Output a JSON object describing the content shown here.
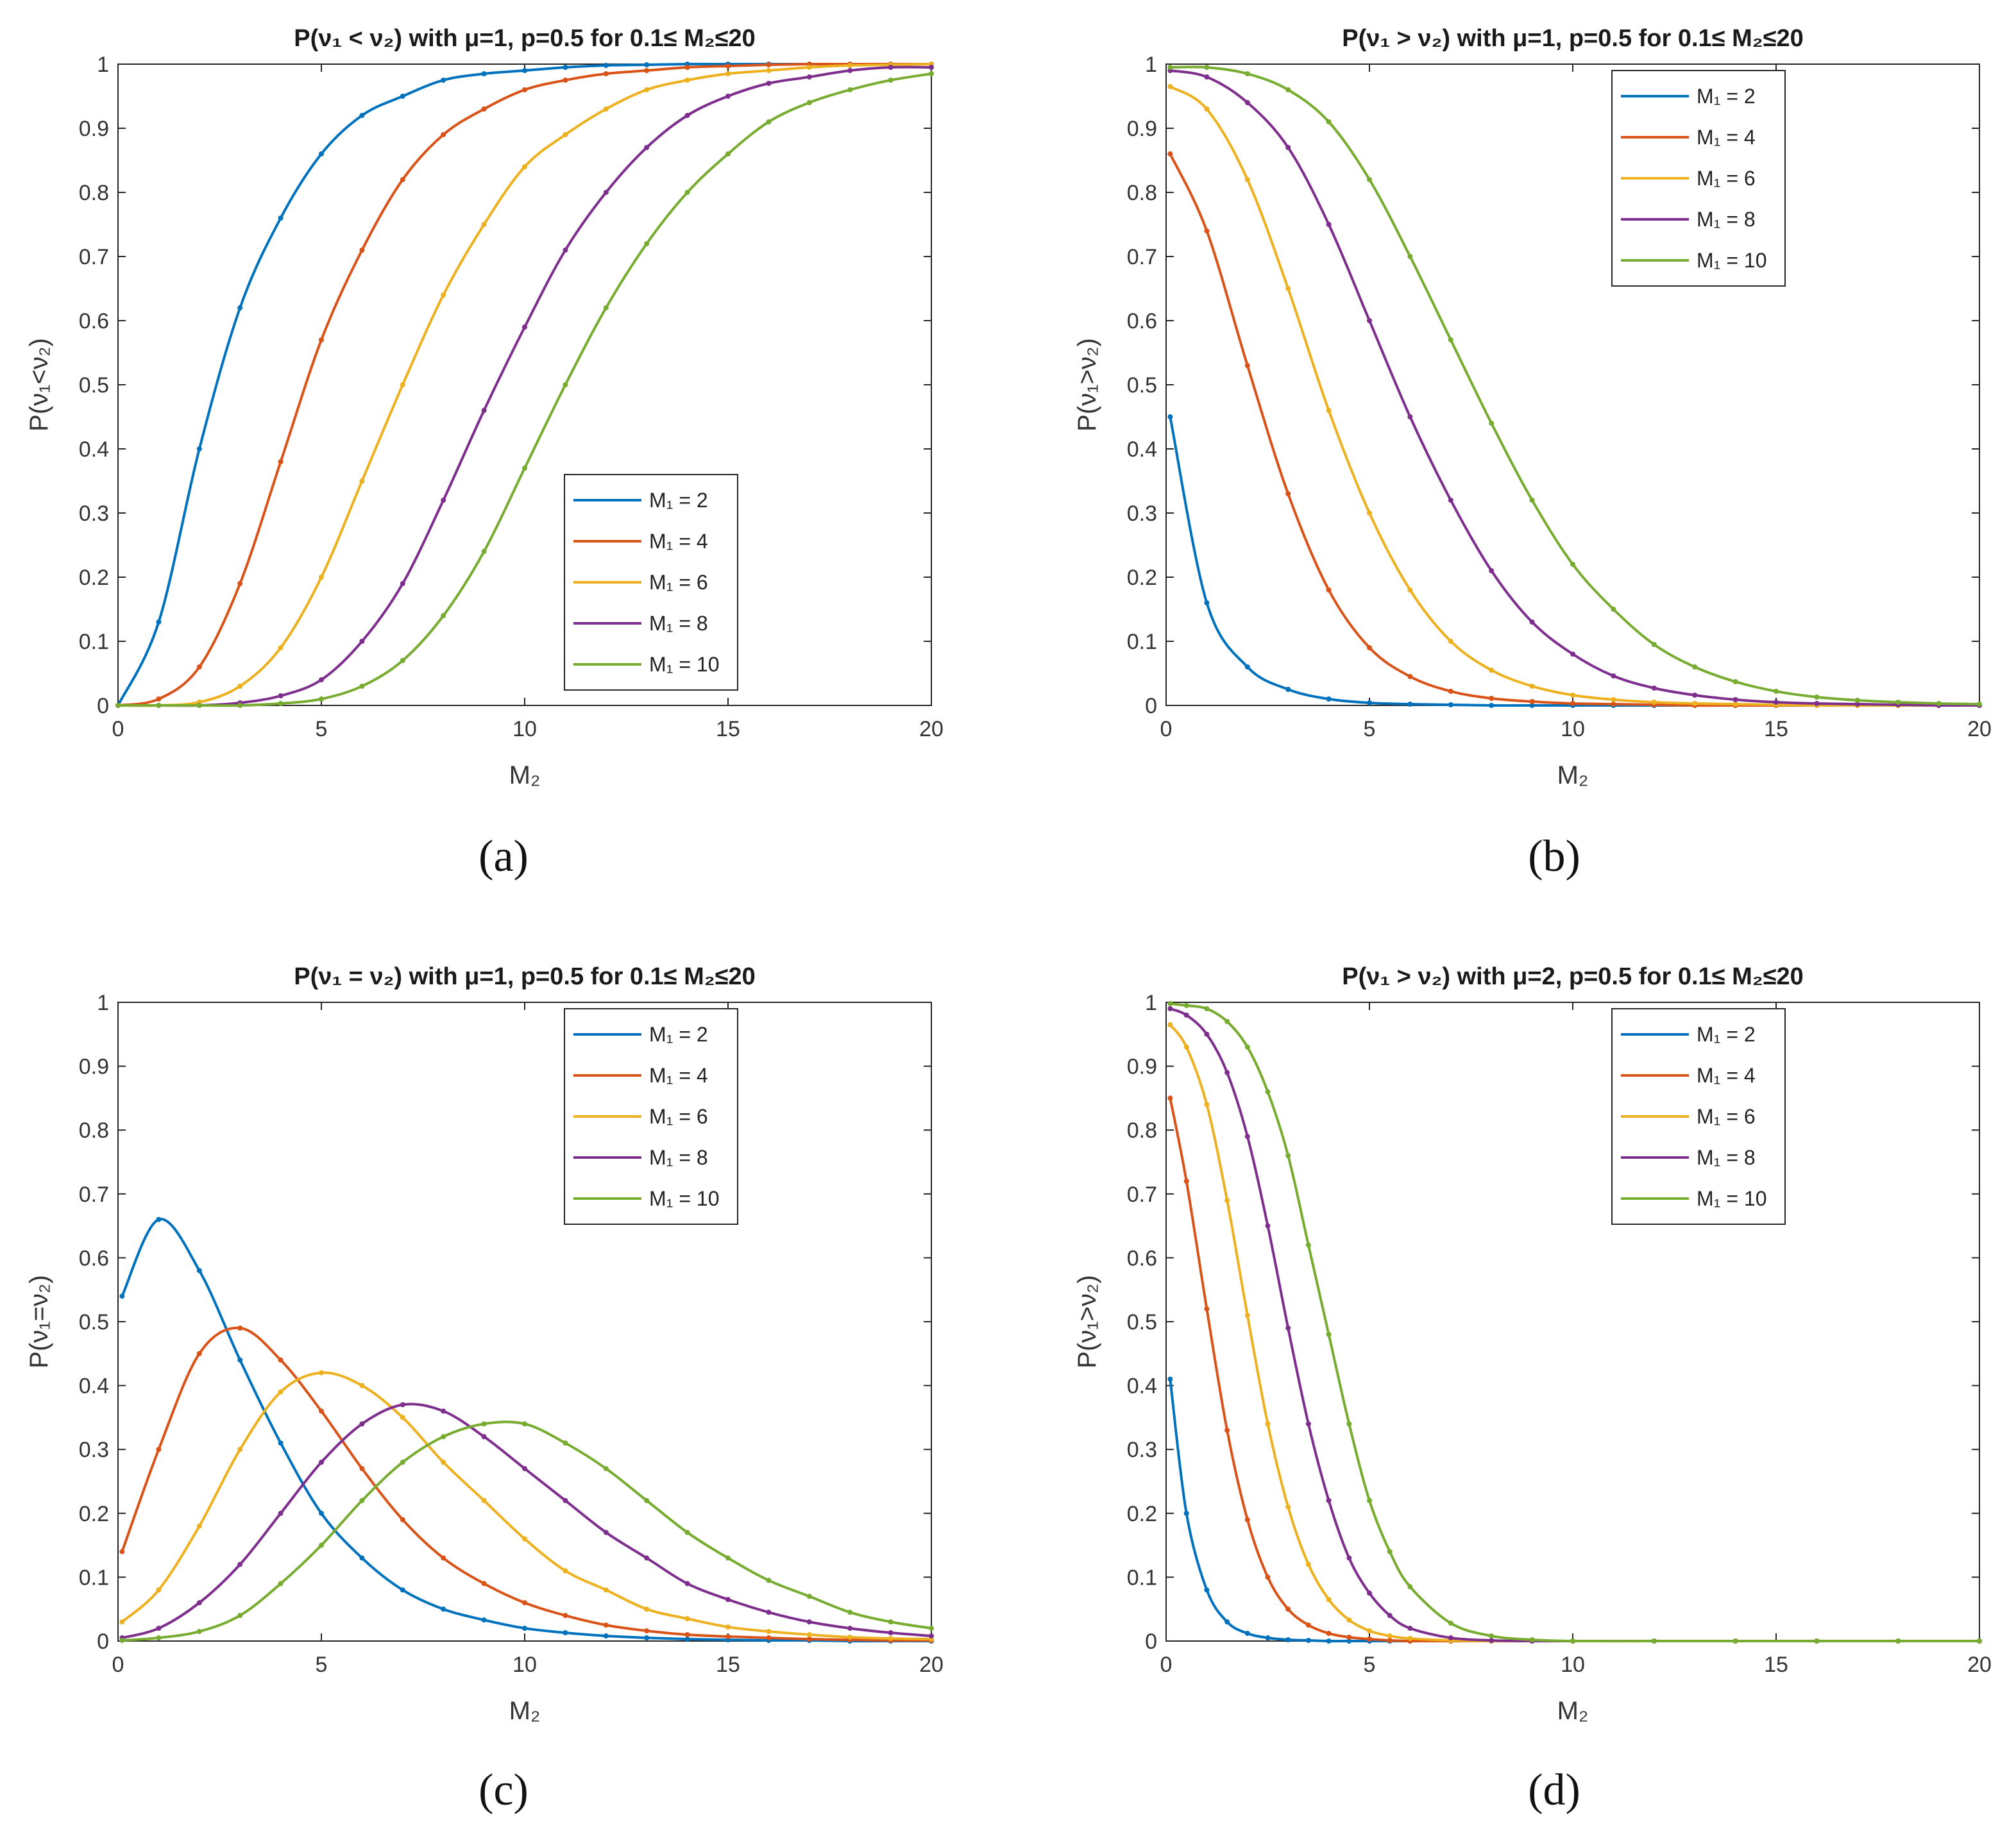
{
  "figure": {
    "panel_labels": [
      "(a)",
      "(b)",
      "(c)",
      "(d)"
    ]
  },
  "chart_data": [
    {
      "type": "line",
      "panel": "(a)",
      "title": "P(ν₁ < ν₂) with μ=1, p=0.5 for 0.1≤ M₂≤20",
      "xlabel": "M₂",
      "ylabel": "P(ν₁<ν₂)",
      "xlim": [
        0,
        20
      ],
      "ylim": [
        0,
        1
      ],
      "xticks": [
        "0",
        "5",
        "10",
        "15",
        "20"
      ],
      "yticks": [
        "0",
        "0.1",
        "0.2",
        "0.3",
        "0.4",
        "0.5",
        "0.6",
        "0.7",
        "0.8",
        "0.9",
        "1"
      ],
      "legend_position": "bottom-right",
      "x": [
        0,
        1,
        2,
        3,
        4,
        5,
        6,
        7,
        8,
        9,
        10,
        11,
        12,
        13,
        14,
        15,
        16,
        17,
        18,
        19,
        20
      ],
      "series": [
        {
          "name": "M₁ = 2",
          "color": "#0072BD",
          "values": [
            0.0,
            0.13,
            0.4,
            0.62,
            0.76,
            0.86,
            0.92,
            0.95,
            0.975,
            0.985,
            0.99,
            0.995,
            0.998,
            0.999,
            1.0,
            1.0,
            1.0,
            1.0,
            1.0,
            1.0,
            1.0
          ]
        },
        {
          "name": "M₁ = 4",
          "color": "#D95319",
          "values": [
            0.0,
            0.01,
            0.06,
            0.19,
            0.38,
            0.57,
            0.71,
            0.82,
            0.89,
            0.93,
            0.96,
            0.975,
            0.985,
            0.99,
            0.995,
            0.997,
            0.999,
            1.0,
            1.0,
            1.0,
            1.0
          ]
        },
        {
          "name": "M₁ = 6",
          "color": "#EDB120",
          "values": [
            0.0,
            0.0,
            0.005,
            0.03,
            0.09,
            0.2,
            0.35,
            0.5,
            0.64,
            0.75,
            0.84,
            0.89,
            0.93,
            0.96,
            0.975,
            0.985,
            0.99,
            0.995,
            0.998,
            0.999,
            1.0
          ]
        },
        {
          "name": "M₁ = 8",
          "color": "#7E2F8E",
          "values": [
            0.0,
            0.0,
            0.0,
            0.004,
            0.015,
            0.04,
            0.1,
            0.19,
            0.32,
            0.46,
            0.59,
            0.71,
            0.8,
            0.87,
            0.92,
            0.95,
            0.97,
            0.98,
            0.99,
            0.995,
            0.995
          ]
        },
        {
          "name": "M₁ = 10",
          "color": "#77AC30",
          "values": [
            0.0,
            0.0,
            0.0,
            0.0,
            0.003,
            0.01,
            0.03,
            0.07,
            0.14,
            0.24,
            0.37,
            0.5,
            0.62,
            0.72,
            0.8,
            0.86,
            0.91,
            0.94,
            0.96,
            0.975,
            0.985
          ]
        }
      ]
    },
    {
      "type": "line",
      "panel": "(b)",
      "title": "P(ν₁ > ν₂) with μ=1, p=0.5 for 0.1≤ M₂≤20",
      "xlabel": "M₂",
      "ylabel": "P(ν₁>ν₂)",
      "xlim": [
        0,
        20
      ],
      "ylim": [
        0,
        1
      ],
      "xticks": [
        "0",
        "5",
        "10",
        "15",
        "20"
      ],
      "yticks": [
        "0",
        "0.1",
        "0.2",
        "0.3",
        "0.4",
        "0.5",
        "0.6",
        "0.7",
        "0.8",
        "0.9",
        "1"
      ],
      "legend_position": "top-right",
      "x": [
        0.1,
        1,
        2,
        3,
        4,
        5,
        6,
        7,
        8,
        9,
        10,
        11,
        12,
        13,
        14,
        15,
        16,
        17,
        18,
        19,
        20
      ],
      "series": [
        {
          "name": "M₁ = 2",
          "color": "#0072BD",
          "values": [
            0.45,
            0.16,
            0.06,
            0.025,
            0.01,
            0.004,
            0.002,
            0.001,
            0.0,
            0.0,
            0.0,
            0.0,
            0.0,
            0.0,
            0.0,
            0.0,
            0.0,
            0.0,
            0.0,
            0.0,
            0.0
          ]
        },
        {
          "name": "M₁ = 4",
          "color": "#D95319",
          "values": [
            0.86,
            0.74,
            0.53,
            0.33,
            0.18,
            0.09,
            0.045,
            0.022,
            0.011,
            0.006,
            0.003,
            0.002,
            0.001,
            0.0,
            0.0,
            0.0,
            0.0,
            0.0,
            0.0,
            0.0,
            0.0
          ]
        },
        {
          "name": "M₁ = 6",
          "color": "#EDB120",
          "values": [
            0.965,
            0.93,
            0.82,
            0.65,
            0.46,
            0.3,
            0.18,
            0.1,
            0.055,
            0.03,
            0.016,
            0.009,
            0.005,
            0.003,
            0.002,
            0.001,
            0.0,
            0.0,
            0.0,
            0.0,
            0.0
          ]
        },
        {
          "name": "M₁ = 8",
          "color": "#7E2F8E",
          "values": [
            0.99,
            0.98,
            0.94,
            0.87,
            0.75,
            0.6,
            0.45,
            0.32,
            0.21,
            0.13,
            0.08,
            0.046,
            0.027,
            0.016,
            0.009,
            0.005,
            0.003,
            0.002,
            0.001,
            0.0,
            0.0
          ]
        },
        {
          "name": "M₁ = 10",
          "color": "#77AC30",
          "values": [
            0.995,
            0.995,
            0.985,
            0.96,
            0.91,
            0.82,
            0.7,
            0.57,
            0.44,
            0.32,
            0.22,
            0.15,
            0.095,
            0.06,
            0.037,
            0.022,
            0.013,
            0.008,
            0.005,
            0.003,
            0.002
          ]
        }
      ]
    },
    {
      "type": "line",
      "panel": "(c)",
      "title": "P(ν₁ = ν₂) with μ=1, p=0.5 for 0.1≤ M₂≤20",
      "xlabel": "M₂",
      "ylabel": "P(ν₁=ν₂)",
      "xlim": [
        0,
        20
      ],
      "ylim": [
        0,
        1
      ],
      "xticks": [
        "0",
        "5",
        "10",
        "15",
        "20"
      ],
      "yticks": [
        "0",
        "0.1",
        "0.2",
        "0.3",
        "0.4",
        "0.5",
        "0.6",
        "0.7",
        "0.8",
        "0.9",
        "1"
      ],
      "legend_position": "top-right",
      "x": [
        0.1,
        1,
        2,
        3,
        4,
        5,
        6,
        7,
        8,
        9,
        10,
        11,
        12,
        13,
        14,
        15,
        16,
        17,
        18,
        19,
        20
      ],
      "series": [
        {
          "name": "M₁ = 2",
          "color": "#0072BD",
          "values": [
            0.54,
            0.66,
            0.58,
            0.44,
            0.31,
            0.2,
            0.13,
            0.08,
            0.05,
            0.033,
            0.02,
            0.013,
            0.008,
            0.005,
            0.003,
            0.002,
            0.001,
            0.001,
            0.0,
            0.0,
            0.0
          ]
        },
        {
          "name": "M₁ = 4",
          "color": "#D95319",
          "values": [
            0.14,
            0.3,
            0.45,
            0.49,
            0.44,
            0.36,
            0.27,
            0.19,
            0.13,
            0.09,
            0.06,
            0.04,
            0.025,
            0.016,
            0.01,
            0.007,
            0.005,
            0.003,
            0.002,
            0.001,
            0.001
          ]
        },
        {
          "name": "M₁ = 6",
          "color": "#EDB120",
          "values": [
            0.03,
            0.08,
            0.18,
            0.3,
            0.39,
            0.42,
            0.4,
            0.35,
            0.28,
            0.22,
            0.16,
            0.11,
            0.08,
            0.05,
            0.035,
            0.022,
            0.015,
            0.01,
            0.006,
            0.004,
            0.003
          ]
        },
        {
          "name": "M₁ = 8",
          "color": "#7E2F8E",
          "values": [
            0.005,
            0.02,
            0.06,
            0.12,
            0.2,
            0.28,
            0.34,
            0.37,
            0.36,
            0.32,
            0.27,
            0.22,
            0.17,
            0.13,
            0.09,
            0.065,
            0.045,
            0.03,
            0.02,
            0.013,
            0.008
          ]
        },
        {
          "name": "M₁ = 10",
          "color": "#77AC30",
          "values": [
            0.001,
            0.005,
            0.015,
            0.04,
            0.09,
            0.15,
            0.22,
            0.28,
            0.32,
            0.34,
            0.34,
            0.31,
            0.27,
            0.22,
            0.17,
            0.13,
            0.095,
            0.07,
            0.045,
            0.03,
            0.02
          ]
        }
      ]
    },
    {
      "type": "line",
      "panel": "(d)",
      "title": "P(ν₁ > ν₂) with μ=2, p=0.5 for 0.1≤ M₂≤20",
      "xlabel": "M₂",
      "ylabel": "P(ν₁>ν₂)",
      "xlim": [
        0,
        20
      ],
      "ylim": [
        0,
        1
      ],
      "xticks": [
        "0",
        "5",
        "10",
        "15",
        "20"
      ],
      "yticks": [
        "0",
        "0.1",
        "0.2",
        "0.3",
        "0.4",
        "0.5",
        "0.6",
        "0.7",
        "0.8",
        "0.9",
        "1"
      ],
      "legend_position": "top-right",
      "x": [
        0.1,
        0.5,
        1,
        1.5,
        2,
        2.5,
        3,
        3.5,
        4,
        4.5,
        5,
        5.5,
        6,
        7,
        8,
        9,
        10,
        12,
        14,
        16,
        18,
        20
      ],
      "series": [
        {
          "name": "M₁ = 2",
          "color": "#0072BD",
          "values": [
            0.41,
            0.2,
            0.08,
            0.03,
            0.012,
            0.005,
            0.002,
            0.001,
            0.0,
            0.0,
            0.0,
            0.0,
            0.0,
            0.0,
            0.0,
            0.0,
            0.0,
            0.0,
            0.0,
            0.0,
            0.0,
            0.0
          ]
        },
        {
          "name": "M₁ = 4",
          "color": "#D95319",
          "values": [
            0.85,
            0.72,
            0.52,
            0.33,
            0.19,
            0.1,
            0.05,
            0.025,
            0.012,
            0.006,
            0.003,
            0.001,
            0.0,
            0.0,
            0.0,
            0.0,
            0.0,
            0.0,
            0.0,
            0.0,
            0.0,
            0.0
          ]
        },
        {
          "name": "M₁ = 6",
          "color": "#EDB120",
          "values": [
            0.965,
            0.93,
            0.84,
            0.69,
            0.51,
            0.34,
            0.21,
            0.12,
            0.065,
            0.033,
            0.016,
            0.008,
            0.004,
            0.001,
            0.0,
            0.0,
            0.0,
            0.0,
            0.0,
            0.0,
            0.0,
            0.0
          ]
        },
        {
          "name": "M₁ = 8",
          "color": "#7E2F8E",
          "values": [
            0.99,
            0.98,
            0.95,
            0.89,
            0.79,
            0.65,
            0.49,
            0.34,
            0.22,
            0.13,
            0.075,
            0.04,
            0.02,
            0.005,
            0.001,
            0.0,
            0.0,
            0.0,
            0.0,
            0.0,
            0.0,
            0.0
          ]
        },
        {
          "name": "M₁ = 10",
          "color": "#77AC30",
          "values": [
            0.998,
            0.995,
            0.99,
            0.97,
            0.93,
            0.86,
            0.76,
            0.62,
            0.48,
            0.34,
            0.22,
            0.14,
            0.085,
            0.028,
            0.008,
            0.002,
            0.0,
            0.0,
            0.0,
            0.0,
            0.0,
            0.0
          ]
        }
      ]
    }
  ]
}
